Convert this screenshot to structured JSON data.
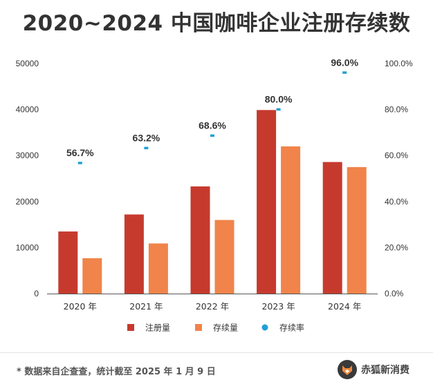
{
  "chart_data": {
    "type": "bar",
    "title": "2020~2024 中国咖啡企业注册存续数",
    "categories": [
      "2020 年",
      "2021 年",
      "2022 年",
      "2023 年",
      "2024 年"
    ],
    "series": [
      {
        "name": "注册量",
        "color": "#c63a2e",
        "axis": "left",
        "values": [
          13500,
          17200,
          23300,
          39900,
          28600
        ]
      },
      {
        "name": "存续量",
        "color": "#f0844a",
        "axis": "left",
        "values": [
          7700,
          10900,
          16000,
          32000,
          27500
        ]
      },
      {
        "name": "存续率",
        "color": "#1e9fd8",
        "axis": "right",
        "type": "scatter",
        "values": [
          56.7,
          63.2,
          68.6,
          80.0,
          96.0
        ]
      }
    ],
    "rate_labels": [
      "56.7%",
      "63.2%",
      "68.6%",
      "80.0%",
      "96.0%"
    ],
    "y_left": {
      "min": 0,
      "max": 50000,
      "ticks": [
        "0",
        "10000",
        "20000",
        "30000",
        "40000",
        "50000"
      ]
    },
    "y_right": {
      "min": 0,
      "max": 100,
      "ticks": [
        "0.0%",
        "20.0%",
        "40.0%",
        "60.0%",
        "80.0%",
        "100.0%"
      ]
    },
    "legend": [
      "注册量",
      "存续量",
      "存续率"
    ],
    "legend_position": "bottom",
    "grid": false
  },
  "footer": {
    "note": "* 数据来自企查查，统计截至 2025 年 1 月 9 日",
    "brand": "赤狐新消费"
  },
  "colors": {
    "text": "#333333",
    "axis": "#666666"
  }
}
